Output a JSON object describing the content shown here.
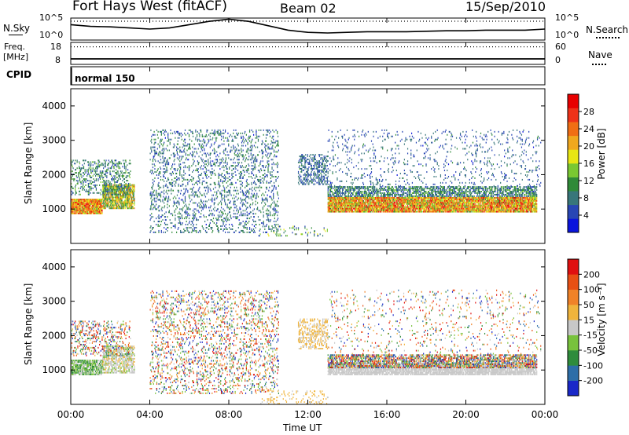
{
  "header": {
    "station": "Fort Hays West (fitACF)",
    "beam": "Beam 02",
    "date": "15/Sep/2010"
  },
  "sky_panel": {
    "left_label": "N.Sky",
    "left_ticks": [
      "10^5",
      "10^0"
    ],
    "right_ticks": [
      "10^5",
      "10^0"
    ],
    "right_label": "N.Search"
  },
  "freq_panel": {
    "left_label": [
      "Freq.",
      "[MHz]"
    ],
    "left_ticks": [
      "18",
      "8"
    ],
    "right_ticks": [
      "60",
      "0"
    ],
    "right_label": "Nave"
  },
  "cpid_panel": {
    "label": "CPID",
    "program": "normal 150"
  },
  "x_axis": {
    "label": "Time UT",
    "ticks": [
      "00:00",
      "04:00",
      "08:00",
      "12:00",
      "16:00",
      "20:00",
      "00:00"
    ]
  },
  "power_colorbar": {
    "label": "Power [dB]",
    "ticks": [
      "28",
      "24",
      "20",
      "16",
      "12",
      "8",
      "4"
    ],
    "colors": [
      "#0a14dc",
      "#2846b4",
      "#38767a",
      "#2f8a38",
      "#7ac832",
      "#e8e614",
      "#f0a81e",
      "#f06e14",
      "#ee3218",
      "#e80000"
    ]
  },
  "velocity_colorbar": {
    "label": "Velocity [m s⁻¹]",
    "ticks": [
      "200",
      "100",
      "50",
      "15",
      "-15",
      "-50",
      "-100",
      "-200"
    ],
    "colors": [
      "#1a28c8",
      "#2d6ea8",
      "#2f8c3c",
      "#78c23c",
      "#c8c8c8",
      "#f0b43c",
      "#f08228",
      "#e85014",
      "#e01010"
    ]
  },
  "chart_data": [
    {
      "type": "heatmap",
      "name": "power",
      "ylabel": "Slant Range [km]",
      "xlabel": "",
      "xlim": [
        0,
        24
      ],
      "ylim": [
        0,
        4500
      ],
      "yticks": [
        1000,
        2000,
        3000,
        4000
      ],
      "cbar_range": [
        0,
        32
      ],
      "regions": [
        {
          "t": [
            0.0,
            1.6
          ],
          "r": [
            850,
            1300
          ],
          "v": [
            14,
            30
          ],
          "d": 0.95
        },
        {
          "t": [
            1.6,
            3.2
          ],
          "r": [
            1000,
            1700
          ],
          "v": [
            8,
            24
          ],
          "d": 0.75
        },
        {
          "t": [
            0.0,
            3.0
          ],
          "r": [
            1400,
            2400
          ],
          "v": [
            4,
            14
          ],
          "d": 0.25
        },
        {
          "t": [
            4.0,
            10.5
          ],
          "r": [
            300,
            3300
          ],
          "v": [
            3,
            12
          ],
          "d": 0.16
        },
        {
          "t": [
            11.5,
            13.0
          ],
          "r": [
            1700,
            2600
          ],
          "v": [
            4,
            10
          ],
          "d": 0.35
        },
        {
          "t": [
            13.0,
            23.6
          ],
          "r": [
            900,
            1350
          ],
          "v": [
            12,
            30
          ],
          "d": 0.9
        },
        {
          "t": [
            13.0,
            23.6
          ],
          "r": [
            1350,
            1650
          ],
          "v": [
            4,
            14
          ],
          "d": 0.55
        },
        {
          "t": [
            13.0,
            23.8
          ],
          "r": [
            1650,
            3300
          ],
          "v": [
            3,
            10
          ],
          "d": 0.06
        },
        {
          "t": [
            9.5,
            13.0
          ],
          "r": [
            200,
            500
          ],
          "v": [
            4,
            18
          ],
          "d": 0.08
        }
      ]
    },
    {
      "type": "heatmap",
      "name": "velocity",
      "ylabel": "Slant Range [km]",
      "xlabel": "Time UT",
      "xlim": [
        0,
        24
      ],
      "ylim": [
        0,
        4500
      ],
      "yticks": [
        1000,
        2000,
        3000,
        4000
      ],
      "cbar_range": [
        -250,
        250
      ],
      "regions": [
        {
          "t": [
            0.0,
            1.6
          ],
          "r": [
            850,
            1300
          ],
          "v": [
            -120,
            20
          ],
          "d": 0.8
        },
        {
          "t": [
            1.6,
            3.2
          ],
          "r": [
            900,
            1700
          ],
          "v": [
            -50,
            50
          ],
          "d": 0.6
        },
        {
          "t": [
            0.0,
            3.0
          ],
          "r": [
            1400,
            2400
          ],
          "v": [
            -250,
            250
          ],
          "d": 0.2
        },
        {
          "t": [
            4.0,
            10.5
          ],
          "r": [
            300,
            3300
          ],
          "v": [
            -250,
            250
          ],
          "d": 0.16
        },
        {
          "t": [
            11.5,
            13.0
          ],
          "r": [
            1600,
            2500
          ],
          "v": [
            0,
            80
          ],
          "d": 0.35
        },
        {
          "t": [
            13.0,
            23.6
          ],
          "r": [
            850,
            1200
          ],
          "v": [
            -20,
            20
          ],
          "d": 0.8
        },
        {
          "t": [
            13.0,
            23.6
          ],
          "r": [
            1050,
            1450
          ],
          "v": [
            -250,
            250
          ],
          "d": 0.6
        },
        {
          "t": [
            13.0,
            23.8
          ],
          "r": [
            1450,
            3300
          ],
          "v": [
            -250,
            250
          ],
          "d": 0.05
        },
        {
          "t": [
            9.5,
            13.0
          ],
          "r": [
            0,
            400
          ],
          "v": [
            20,
            60
          ],
          "d": 0.1
        }
      ]
    },
    {
      "type": "line",
      "name": "sky-noise",
      "x": [
        0,
        1,
        2,
        3,
        4,
        5,
        6,
        7,
        8,
        9,
        10,
        11,
        12,
        13,
        14,
        15,
        16,
        17,
        18,
        19,
        20,
        21,
        22,
        23,
        24
      ],
      "y": [
        0.7,
        0.62,
        0.6,
        0.55,
        0.5,
        0.55,
        0.7,
        0.85,
        0.95,
        0.85,
        0.65,
        0.45,
        0.35,
        0.32,
        0.35,
        0.38,
        0.38,
        0.38,
        0.4,
        0.42,
        0.42,
        0.45,
        0.45,
        0.45,
        0.5
      ],
      "ylim": [
        0,
        1
      ]
    },
    {
      "type": "line",
      "name": "frequency",
      "x": [
        0,
        24
      ],
      "y": [
        10.5,
        10.5
      ],
      "ylim": [
        8,
        18
      ]
    },
    {
      "type": "line",
      "name": "nave",
      "x": [
        0,
        24
      ],
      "y": [
        48,
        48
      ],
      "ylim": [
        0,
        60
      ]
    }
  ]
}
